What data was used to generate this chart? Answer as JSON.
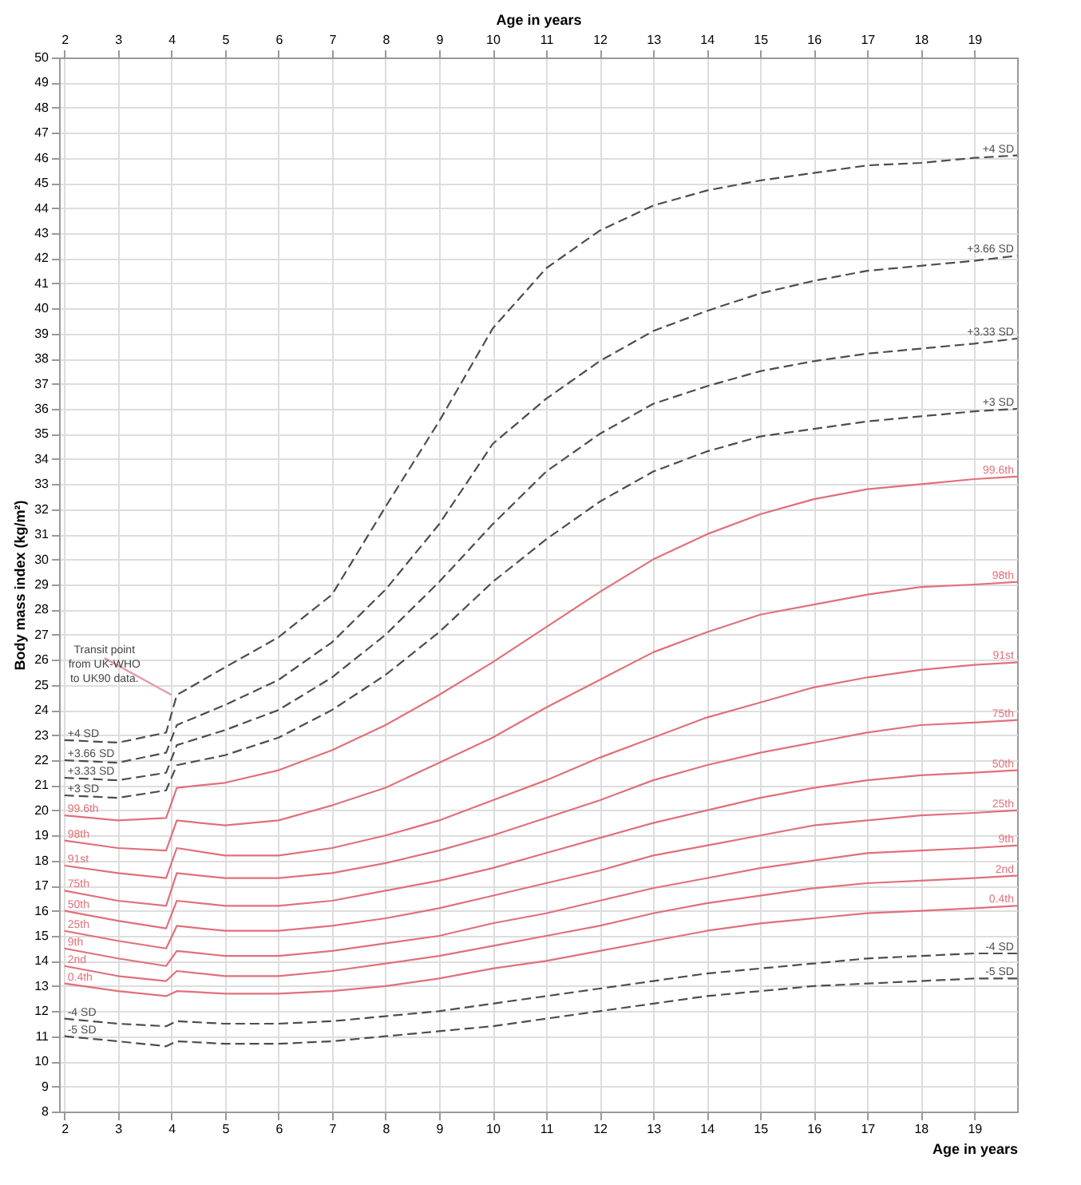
{
  "chart_data": {
    "type": "line",
    "ylabel": "Body mass index (kg/m²)",
    "xlabel": "Age in years",
    "x2label": "Age in years",
    "x": [
      2,
      3,
      3.9,
      4.1,
      5,
      6,
      7,
      8,
      9,
      10,
      11,
      12,
      13,
      14,
      15,
      16,
      17,
      18,
      19,
      19.8
    ],
    "xlim": [
      1.9,
      19.8
    ],
    "xticks": [
      2,
      3,
      4,
      5,
      6,
      7,
      8,
      9,
      10,
      11,
      12,
      13,
      14,
      15,
      16,
      17,
      18,
      19
    ],
    "x2lim": [
      1.9,
      19.8
    ],
    "x2ticks": [
      2,
      3,
      4,
      5,
      6,
      7,
      8,
      9,
      10,
      11,
      12,
      13,
      14,
      15,
      16,
      17,
      18,
      19
    ],
    "ylim": [
      8,
      50
    ],
    "yticks": [
      8,
      9,
      10,
      11,
      12,
      13,
      14,
      15,
      16,
      17,
      18,
      19,
      20,
      21,
      22,
      23,
      24,
      25,
      26,
      27,
      28,
      29,
      30,
      31,
      32,
      33,
      34,
      35,
      36,
      37,
      38,
      39,
      40,
      41,
      42,
      43,
      44,
      45,
      46,
      47,
      48,
      49,
      50
    ],
    "grid": true,
    "series": [
      {
        "name": "+4 SD",
        "color": "#4d4d4d",
        "line_style": "dashed",
        "values": [
          22.8,
          22.7,
          23.1,
          24.6,
          25.7,
          26.9,
          28.6,
          32.1,
          35.5,
          39.2,
          41.6,
          43.1,
          44.1,
          44.7,
          45.1,
          45.4,
          45.7,
          45.8,
          46.0,
          46.1
        ]
      },
      {
        "name": "+3.66 SD",
        "color": "#4d4d4d",
        "line_style": "dashed",
        "values": [
          22.0,
          21.9,
          22.3,
          23.4,
          24.2,
          25.2,
          26.7,
          28.8,
          31.4,
          34.6,
          36.4,
          37.9,
          39.1,
          39.9,
          40.6,
          41.1,
          41.5,
          41.7,
          41.9,
          42.1
        ]
      },
      {
        "name": "+3.33 SD",
        "color": "#4d4d4d",
        "line_style": "dashed",
        "values": [
          21.3,
          21.2,
          21.5,
          22.6,
          23.2,
          24.0,
          25.3,
          27.0,
          29.1,
          31.4,
          33.5,
          35.0,
          36.2,
          36.9,
          37.5,
          37.9,
          38.2,
          38.4,
          38.6,
          38.8
        ]
      },
      {
        "name": "+3 SD",
        "color": "#4d4d4d",
        "line_style": "dashed",
        "values": [
          20.6,
          20.5,
          20.8,
          21.8,
          22.2,
          22.9,
          24.0,
          25.4,
          27.1,
          29.1,
          30.8,
          32.3,
          33.5,
          34.3,
          34.9,
          35.2,
          35.5,
          35.7,
          35.9,
          36.0
        ]
      },
      {
        "name": "99.6th",
        "color": "#e0707a",
        "line_style": "solid",
        "values": [
          19.8,
          19.6,
          19.7,
          20.9,
          21.1,
          21.6,
          22.4,
          23.4,
          24.6,
          25.9,
          27.3,
          28.7,
          30.0,
          31.0,
          31.8,
          32.4,
          32.8,
          33.0,
          33.2,
          33.3
        ]
      },
      {
        "name": "98th",
        "color": "#e0707a",
        "line_style": "solid",
        "values": [
          18.8,
          18.5,
          18.4,
          19.6,
          19.4,
          19.6,
          20.2,
          20.9,
          21.9,
          22.9,
          24.1,
          25.2,
          26.3,
          27.1,
          27.8,
          28.2,
          28.6,
          28.9,
          29.0,
          29.1
        ]
      },
      {
        "name": "91st",
        "color": "#e0707a",
        "line_style": "solid",
        "values": [
          17.8,
          17.5,
          17.3,
          18.5,
          18.2,
          18.2,
          18.5,
          19.0,
          19.6,
          20.4,
          21.2,
          22.1,
          22.9,
          23.7,
          24.3,
          24.9,
          25.3,
          25.6,
          25.8,
          25.9
        ]
      },
      {
        "name": "75th",
        "color": "#e0707a",
        "line_style": "solid",
        "values": [
          16.8,
          16.4,
          16.2,
          17.5,
          17.3,
          17.3,
          17.5,
          17.9,
          18.4,
          19.0,
          19.7,
          20.4,
          21.2,
          21.8,
          22.3,
          22.7,
          23.1,
          23.4,
          23.5,
          23.6
        ]
      },
      {
        "name": "50th",
        "color": "#e0707a",
        "line_style": "solid",
        "values": [
          16.0,
          15.6,
          15.3,
          16.4,
          16.2,
          16.2,
          16.4,
          16.8,
          17.2,
          17.7,
          18.3,
          18.9,
          19.5,
          20.0,
          20.5,
          20.9,
          21.2,
          21.4,
          21.5,
          21.6
        ]
      },
      {
        "name": "25th",
        "color": "#e0707a",
        "line_style": "solid",
        "values": [
          15.2,
          14.8,
          14.5,
          15.4,
          15.2,
          15.2,
          15.4,
          15.7,
          16.1,
          16.6,
          17.1,
          17.6,
          18.2,
          18.6,
          19.0,
          19.4,
          19.6,
          19.8,
          19.9,
          20.0
        ]
      },
      {
        "name": "9th",
        "color": "#e0707a",
        "line_style": "solid",
        "values": [
          14.5,
          14.1,
          13.8,
          14.4,
          14.2,
          14.2,
          14.4,
          14.7,
          15.0,
          15.5,
          15.9,
          16.4,
          16.9,
          17.3,
          17.7,
          18.0,
          18.3,
          18.4,
          18.5,
          18.6
        ]
      },
      {
        "name": "2nd",
        "color": "#e0707a",
        "line_style": "solid",
        "values": [
          13.8,
          13.4,
          13.2,
          13.6,
          13.4,
          13.4,
          13.6,
          13.9,
          14.2,
          14.6,
          15.0,
          15.4,
          15.9,
          16.3,
          16.6,
          16.9,
          17.1,
          17.2,
          17.3,
          17.4
        ]
      },
      {
        "name": "0.4th",
        "color": "#e0707a",
        "line_style": "solid",
        "values": [
          13.1,
          12.8,
          12.6,
          12.8,
          12.7,
          12.7,
          12.8,
          13.0,
          13.3,
          13.7,
          14.0,
          14.4,
          14.8,
          15.2,
          15.5,
          15.7,
          15.9,
          16.0,
          16.1,
          16.2
        ]
      },
      {
        "name": "-4 SD",
        "color": "#4d4d4d",
        "line_style": "dashed",
        "values": [
          11.7,
          11.5,
          11.4,
          11.6,
          11.5,
          11.5,
          11.6,
          11.8,
          12.0,
          12.3,
          12.6,
          12.9,
          13.2,
          13.5,
          13.7,
          13.9,
          14.1,
          14.2,
          14.3,
          14.3
        ]
      },
      {
        "name": "-5 SD",
        "color": "#4d4d4d",
        "line_style": "dashed",
        "values": [
          11.0,
          10.8,
          10.6,
          10.8,
          10.7,
          10.7,
          10.8,
          11.0,
          11.2,
          11.4,
          11.7,
          12.0,
          12.3,
          12.6,
          12.8,
          13.0,
          13.1,
          13.2,
          13.3,
          13.3
        ]
      }
    ],
    "annotations": [
      {
        "text": "Transit point\nfrom UK-WHO\nto UK90 data.",
        "x": 4,
        "y": 24.6
      }
    ]
  }
}
